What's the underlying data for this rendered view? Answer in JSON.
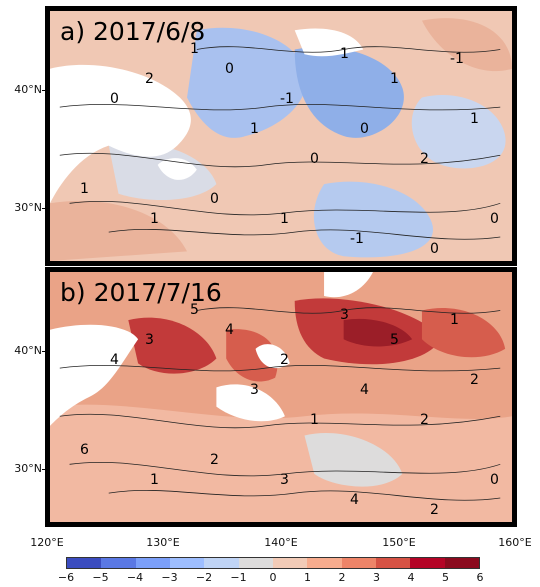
{
  "panels": [
    {
      "title": "a) 2017/6/8",
      "anomaly_theme": "mixed",
      "contour_labels": [
        "1",
        "0",
        "2",
        "1",
        "0",
        "1",
        "-1",
        "0",
        "1",
        "0",
        "1",
        "2",
        "-1",
        "1",
        "0",
        "1",
        "0",
        "1",
        "-1",
        "0"
      ]
    },
    {
      "title": "b) 2017/7/16",
      "anomaly_theme": "warm",
      "contour_labels": [
        "6",
        "4",
        "3",
        "5",
        "4",
        "3",
        "2",
        "1",
        "3",
        "4",
        "5",
        "2",
        "1",
        "2",
        "0",
        "1",
        "2",
        "3",
        "4",
        "2"
      ]
    }
  ],
  "axes": {
    "y_ticks": [
      "40°N",
      "30°N"
    ],
    "x_ticks": [
      "120°E",
      "130°E",
      "140°E",
      "150°E",
      "160°E"
    ]
  },
  "colorbar": {
    "ticks": [
      "−6",
      "−5",
      "−4",
      "−3",
      "−2",
      "−1",
      "0",
      "1",
      "2",
      "3",
      "4",
      "5",
      "6"
    ],
    "colors": [
      "#3b4cc0",
      "#5a78e4",
      "#7b9ff9",
      "#9ebeff",
      "#c0d4f5",
      "#dddcdc",
      "#f2cbb7",
      "#f7ac8e",
      "#ee8468",
      "#d65244",
      "#b40426",
      "#8b0a1e"
    ]
  },
  "colors": {
    "land": "#ffffff",
    "cool_sea": "#b9cdf0",
    "warm_sea": "#f0b49a",
    "hot_sea": "#c23a3a"
  }
}
